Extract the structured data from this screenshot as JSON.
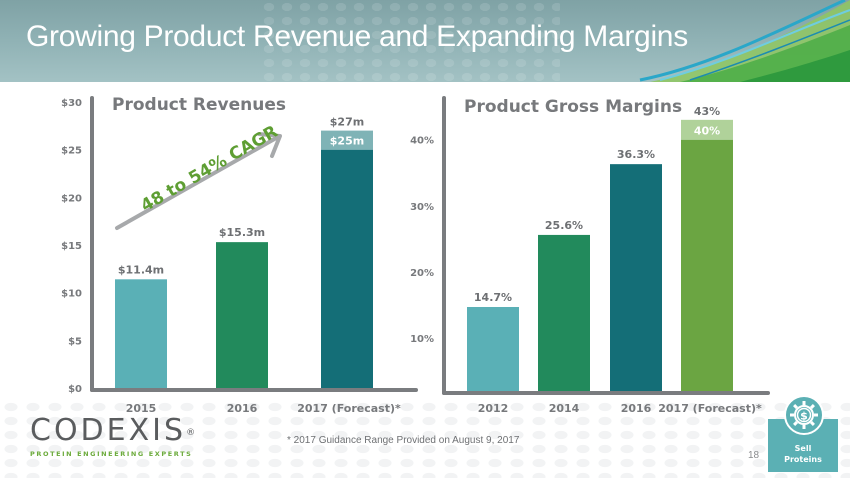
{
  "slide": {
    "title": "Growing Product Revenue and Expanding Margins",
    "footnote": "* 2017 Guidance Range Provided on August 9, 2017",
    "page_number": "18",
    "logo": {
      "name": "CODEXIS",
      "registered": "®",
      "tagline": "PROTEIN ENGINEERING EXPERTS"
    },
    "badge": {
      "icon": "dollar-gear-icon",
      "line1": "Sell",
      "line2": "Proteins"
    }
  },
  "colors": {
    "teal_light": "#5ab0b6",
    "green": "#228a5c",
    "teal_dark": "#146e77",
    "teal_range": "#7fb3b6",
    "lime": "#6ba542",
    "lime_range": "#b0d29a",
    "axis": "#7a7c7f",
    "cagr": "#5e9e33",
    "arrow": "#a7a9ab"
  },
  "chart_data": [
    {
      "type": "bar",
      "title": "Product Revenues",
      "categories": [
        "2015",
        "2016",
        "2017 (Forecast)*"
      ],
      "values": [
        11.4,
        15.3,
        25
      ],
      "range_top": [
        null,
        null,
        27
      ],
      "data_labels": [
        "$11.4m",
        "$15.3m",
        "$25m"
      ],
      "range_label": "$27m",
      "bar_colors": [
        "#5ab0b6",
        "#228a5c",
        "#146e77"
      ],
      "range_color": "#7fb3b6",
      "yticks": [
        0,
        5,
        10,
        15,
        20,
        25,
        30
      ],
      "ytick_labels": [
        "$0",
        "$5",
        "$10",
        "$15",
        "$20",
        "$25",
        "$30"
      ],
      "ylim": [
        0,
        30
      ],
      "xlabel": "",
      "ylabel": "",
      "annotation": "48 to 54% CAGR",
      "grid": false
    },
    {
      "type": "bar",
      "title": "Product Gross Margins",
      "categories": [
        "2012",
        "2014",
        "2016",
        "2017 (Forecast)*"
      ],
      "values": [
        14.7,
        25.6,
        36.3,
        40
      ],
      "range_top": [
        null,
        null,
        null,
        43
      ],
      "data_labels": [
        "14.7%",
        "25.6%",
        "36.3%",
        "40%"
      ],
      "range_label": "43%",
      "bar_colors": [
        "#5ab0b6",
        "#228a5c",
        "#146e77",
        "#6ba542"
      ],
      "range_color": "#b0d29a",
      "yticks": [
        10,
        20,
        30,
        40
      ],
      "ytick_labels": [
        "10%",
        "20%",
        "30%",
        "40%"
      ],
      "ylim": [
        2,
        46
      ],
      "xlabel": "",
      "ylabel": "",
      "grid": false
    }
  ]
}
